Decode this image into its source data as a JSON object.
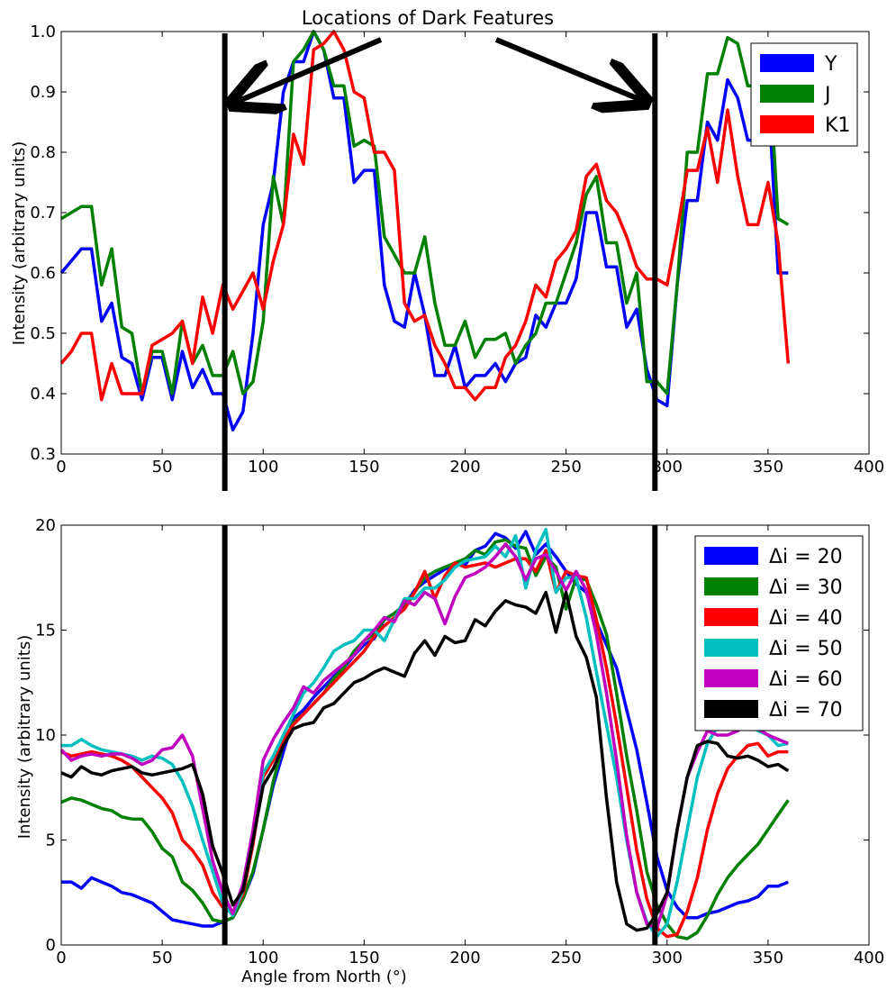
{
  "annotation_title": "Locations of Dark Features",
  "chart_data": [
    {
      "type": "line",
      "title": "",
      "xlabel": "",
      "ylabel": "Intensity (arbitrary units)",
      "xlim": [
        0,
        400
      ],
      "ylim": [
        0.3,
        1.0
      ],
      "xticks": [
        "0",
        "50",
        "100",
        "150",
        "200",
        "250",
        "300",
        "350",
        "400"
      ],
      "yticks": [
        "0.3",
        "0.4",
        "0.5",
        "0.6",
        "0.7",
        "0.8",
        "0.9",
        "1.0"
      ],
      "grid": false,
      "legend_position": "top-right",
      "x": [
        0,
        5,
        10,
        15,
        20,
        25,
        30,
        35,
        40,
        45,
        50,
        55,
        60,
        65,
        70,
        75,
        80,
        85,
        90,
        95,
        100,
        105,
        110,
        115,
        120,
        125,
        130,
        135,
        140,
        145,
        150,
        155,
        160,
        165,
        170,
        175,
        180,
        185,
        190,
        195,
        200,
        205,
        210,
        215,
        220,
        225,
        230,
        235,
        240,
        245,
        250,
        255,
        260,
        265,
        270,
        275,
        280,
        285,
        290,
        295,
        300,
        305,
        310,
        315,
        320,
        325,
        330,
        335,
        340,
        345,
        350,
        355,
        360
      ],
      "series": [
        {
          "name": "Y",
          "color": "#0000ff",
          "values": [
            0.6,
            0.62,
            0.64,
            0.64,
            0.52,
            0.55,
            0.46,
            0.45,
            0.39,
            0.46,
            0.46,
            0.39,
            0.47,
            0.41,
            0.44,
            0.4,
            0.4,
            0.34,
            0.37,
            0.5,
            0.68,
            0.75,
            0.9,
            0.95,
            0.95,
            1.0,
            0.97,
            0.89,
            0.89,
            0.75,
            0.77,
            0.77,
            0.58,
            0.52,
            0.51,
            0.6,
            0.53,
            0.43,
            0.43,
            0.48,
            0.41,
            0.43,
            0.43,
            0.45,
            0.42,
            0.45,
            0.46,
            0.53,
            0.51,
            0.55,
            0.55,
            0.59,
            0.7,
            0.7,
            0.61,
            0.61,
            0.51,
            0.54,
            0.44,
            0.39,
            0.38,
            0.58,
            0.72,
            0.72,
            0.85,
            0.82,
            0.92,
            0.89,
            0.82,
            0.82,
            0.91,
            0.6,
            0.6
          ]
        },
        {
          "name": "J",
          "color": "#008000",
          "values": [
            0.69,
            0.7,
            0.71,
            0.71,
            0.58,
            0.64,
            0.51,
            0.5,
            0.4,
            0.47,
            0.47,
            0.4,
            0.52,
            0.45,
            0.48,
            0.43,
            0.43,
            0.47,
            0.4,
            0.42,
            0.52,
            0.76,
            0.68,
            0.95,
            0.97,
            1.0,
            0.97,
            0.91,
            0.91,
            0.81,
            0.82,
            0.81,
            0.66,
            0.63,
            0.6,
            0.6,
            0.66,
            0.55,
            0.48,
            0.48,
            0.52,
            0.46,
            0.49,
            0.49,
            0.5,
            0.45,
            0.48,
            0.5,
            0.55,
            0.55,
            0.6,
            0.65,
            0.73,
            0.76,
            0.65,
            0.65,
            0.55,
            0.6,
            0.42,
            0.42,
            0.4,
            0.58,
            0.8,
            0.8,
            0.93,
            0.93,
            0.99,
            0.98,
            0.91,
            0.91,
            0.97,
            0.69,
            0.68
          ]
        },
        {
          "name": "K1",
          "color": "#ff0000",
          "values": [
            0.45,
            0.47,
            0.5,
            0.5,
            0.39,
            0.45,
            0.4,
            0.4,
            0.4,
            0.48,
            0.49,
            0.5,
            0.52,
            0.45,
            0.56,
            0.5,
            0.58,
            0.54,
            0.57,
            0.6,
            0.54,
            0.62,
            0.68,
            0.83,
            0.78,
            0.97,
            0.98,
            1.0,
            0.97,
            0.9,
            0.89,
            0.8,
            0.8,
            0.77,
            0.55,
            0.52,
            0.53,
            0.48,
            0.45,
            0.41,
            0.41,
            0.39,
            0.41,
            0.41,
            0.46,
            0.48,
            0.52,
            0.58,
            0.56,
            0.62,
            0.64,
            0.67,
            0.76,
            0.78,
            0.72,
            0.7,
            0.66,
            0.61,
            0.59,
            0.59,
            0.58,
            0.67,
            0.77,
            0.77,
            0.84,
            0.75,
            0.87,
            0.76,
            0.68,
            0.68,
            0.75,
            0.65,
            0.45
          ]
        }
      ]
    },
    {
      "type": "line",
      "title": "",
      "xlabel": "Angle from North (°)",
      "ylabel": "Intensity (arbitrary units)",
      "xlim": [
        0,
        400
      ],
      "ylim": [
        0,
        20
      ],
      "xticks": [
        "0",
        "50",
        "100",
        "150",
        "200",
        "250",
        "300",
        "350",
        "400"
      ],
      "yticks": [
        "0",
        "5",
        "10",
        "15",
        "20"
      ],
      "grid": false,
      "legend_position": "top-right",
      "x": [
        0,
        5,
        10,
        15,
        20,
        25,
        30,
        35,
        40,
        45,
        50,
        55,
        60,
        65,
        70,
        75,
        80,
        85,
        90,
        95,
        100,
        105,
        110,
        115,
        120,
        125,
        130,
        135,
        140,
        145,
        150,
        155,
        160,
        165,
        170,
        175,
        180,
        185,
        190,
        195,
        200,
        205,
        210,
        215,
        220,
        225,
        230,
        235,
        240,
        245,
        250,
        255,
        260,
        265,
        270,
        275,
        280,
        285,
        290,
        295,
        300,
        305,
        310,
        315,
        320,
        325,
        330,
        335,
        340,
        345,
        350,
        355,
        360
      ],
      "series": [
        {
          "name": "Δi = 20",
          "color": "#0000ff",
          "values": [
            3.0,
            3.0,
            2.7,
            3.2,
            3.0,
            2.8,
            2.5,
            2.4,
            2.2,
            2.0,
            1.6,
            1.2,
            1.1,
            1.0,
            0.9,
            0.9,
            1.1,
            1.3,
            2.2,
            3.4,
            5.5,
            7.6,
            9.2,
            10.8,
            11.2,
            11.8,
            12.3,
            12.8,
            13.2,
            13.8,
            14.3,
            14.6,
            15.5,
            15.8,
            16.2,
            16.9,
            17.3,
            17.6,
            17.9,
            18.1,
            18.1,
            18.8,
            19.0,
            19.6,
            19.4,
            18.9,
            19.7,
            18.6,
            19.1,
            18.5,
            17.8,
            17.2,
            16.8,
            15.4,
            14.3,
            13.2,
            11.2,
            9.3,
            6.8,
            4.2,
            2.6,
            1.8,
            1.3,
            1.3,
            1.5,
            1.6,
            1.8,
            2.0,
            2.1,
            2.3,
            2.8,
            2.8,
            3.0
          ]
        },
        {
          "name": "Δi = 30",
          "color": "#008000",
          "values": [
            6.8,
            7.0,
            6.9,
            6.7,
            6.5,
            6.4,
            6.1,
            6.0,
            6.0,
            5.4,
            4.6,
            4.2,
            3.0,
            2.6,
            2.0,
            1.2,
            1.1,
            1.3,
            2.2,
            3.5,
            5.5,
            7.8,
            9.6,
            10.6,
            11.0,
            11.5,
            12.0,
            12.7,
            13.2,
            14.0,
            14.5,
            14.8,
            15.5,
            15.8,
            16.2,
            16.8,
            17.5,
            17.8,
            18.0,
            18.2,
            18.4,
            18.8,
            18.6,
            19.2,
            19.3,
            19.0,
            18.9,
            17.6,
            18.5,
            18.0,
            16.0,
            17.5,
            17.4,
            16.2,
            14.8,
            12.0,
            9.0,
            6.4,
            3.5,
            1.9,
            1.0,
            0.4,
            0.3,
            0.6,
            1.4,
            2.4,
            3.2,
            3.8,
            4.3,
            4.8,
            5.5,
            6.2,
            6.9
          ]
        },
        {
          "name": "Δi = 40",
          "color": "#ff0000",
          "values": [
            9.2,
            9.0,
            9.1,
            9.2,
            9.1,
            9.0,
            8.8,
            8.5,
            8.0,
            7.5,
            7.0,
            6.3,
            5.0,
            4.5,
            3.8,
            2.5,
            1.8,
            1.5,
            2.4,
            4.8,
            8.0,
            8.8,
            9.8,
            10.5,
            11.0,
            11.5,
            12.0,
            12.5,
            13.0,
            13.5,
            14.0,
            14.7,
            15.2,
            15.6,
            16.0,
            16.8,
            17.8,
            16.5,
            17.6,
            18.2,
            18.0,
            18.1,
            18.2,
            18.0,
            18.2,
            18.4,
            18.4,
            17.8,
            18.8,
            16.8,
            17.8,
            17.6,
            17.5,
            15.5,
            13.2,
            10.5,
            7.5,
            4.5,
            2.2,
            0.8,
            0.4,
            0.5,
            1.6,
            3.2,
            5.5,
            7.2,
            8.4,
            9.0,
            9.5,
            9.6,
            9.0,
            9.2,
            9.2
          ]
        },
        {
          "name": "Δi = 50",
          "color": "#00bfbf",
          "values": [
            9.5,
            9.5,
            9.8,
            9.5,
            9.3,
            9.2,
            9.1,
            9.0,
            8.8,
            9.0,
            8.9,
            8.6,
            7.8,
            6.6,
            5.0,
            3.5,
            2.0,
            1.4,
            2.6,
            5.0,
            8.2,
            9.0,
            10.0,
            11.0,
            12.0,
            12.5,
            13.2,
            14.0,
            14.3,
            14.5,
            15.0,
            15.0,
            14.5,
            15.5,
            16.5,
            16.5,
            17.0,
            17.0,
            17.4,
            18.0,
            18.3,
            18.4,
            18.5,
            19.0,
            18.5,
            19.5,
            17.0,
            18.8,
            19.8,
            16.8,
            17.5,
            17.5,
            15.6,
            13.0,
            10.5,
            8.0,
            5.0,
            2.5,
            1.1,
            0.4,
            1.0,
            3.0,
            5.5,
            8.0,
            9.6,
            10.4,
            10.4,
            10.2,
            10.5,
            10.2,
            10.0,
            9.5,
            9.6
          ]
        },
        {
          "name": "Δi = 60",
          "color": "#bf00bf",
          "values": [
            9.3,
            8.8,
            9.0,
            9.1,
            9.0,
            9.1,
            9.1,
            8.9,
            8.6,
            8.8,
            9.3,
            9.4,
            10.0,
            9.0,
            6.5,
            4.0,
            2.5,
            1.5,
            2.9,
            5.5,
            8.8,
            9.8,
            10.6,
            11.3,
            12.3,
            12.0,
            12.6,
            13.0,
            13.4,
            13.8,
            14.5,
            15.0,
            15.6,
            15.4,
            16.4,
            16.2,
            16.8,
            16.5,
            15.3,
            16.6,
            17.5,
            17.7,
            18.0,
            18.5,
            19.1,
            18.5,
            17.4,
            18.4,
            18.6,
            17.8,
            16.9,
            17.8,
            16.9,
            14.8,
            12.0,
            8.8,
            5.2,
            2.5,
            1.0,
            0.8,
            2.4,
            5.5,
            8.0,
            9.2,
            10.2,
            10.0,
            10.0,
            10.2,
            10.5,
            10.3,
            10.0,
            9.8,
            9.6
          ]
        },
        {
          "name": "Δi = 70",
          "color": "#000000",
          "values": [
            8.2,
            8.0,
            8.5,
            8.2,
            8.1,
            8.3,
            8.4,
            8.5,
            8.2,
            8.1,
            8.2,
            8.3,
            8.4,
            8.6,
            7.2,
            4.7,
            3.4,
            1.9,
            2.6,
            5.0,
            7.6,
            8.4,
            9.5,
            10.3,
            10.5,
            10.6,
            11.3,
            11.5,
            12.0,
            12.5,
            12.7,
            13.0,
            13.2,
            13.0,
            12.8,
            13.9,
            14.5,
            13.8,
            14.7,
            14.4,
            14.5,
            15.5,
            15.2,
            15.9,
            16.4,
            16.2,
            16.1,
            15.8,
            16.8,
            14.9,
            16.8,
            14.7,
            13.7,
            11.8,
            7.0,
            3.0,
            1.0,
            0.7,
            0.8,
            1.5,
            2.5,
            5.5,
            8.0,
            9.5,
            9.7,
            9.6,
            9.0,
            8.9,
            9.0,
            8.8,
            8.5,
            8.6,
            8.3
          ]
        }
      ]
    }
  ],
  "dark_feature_lines": {
    "angles": [
      81,
      294
    ],
    "color": "#000000"
  }
}
